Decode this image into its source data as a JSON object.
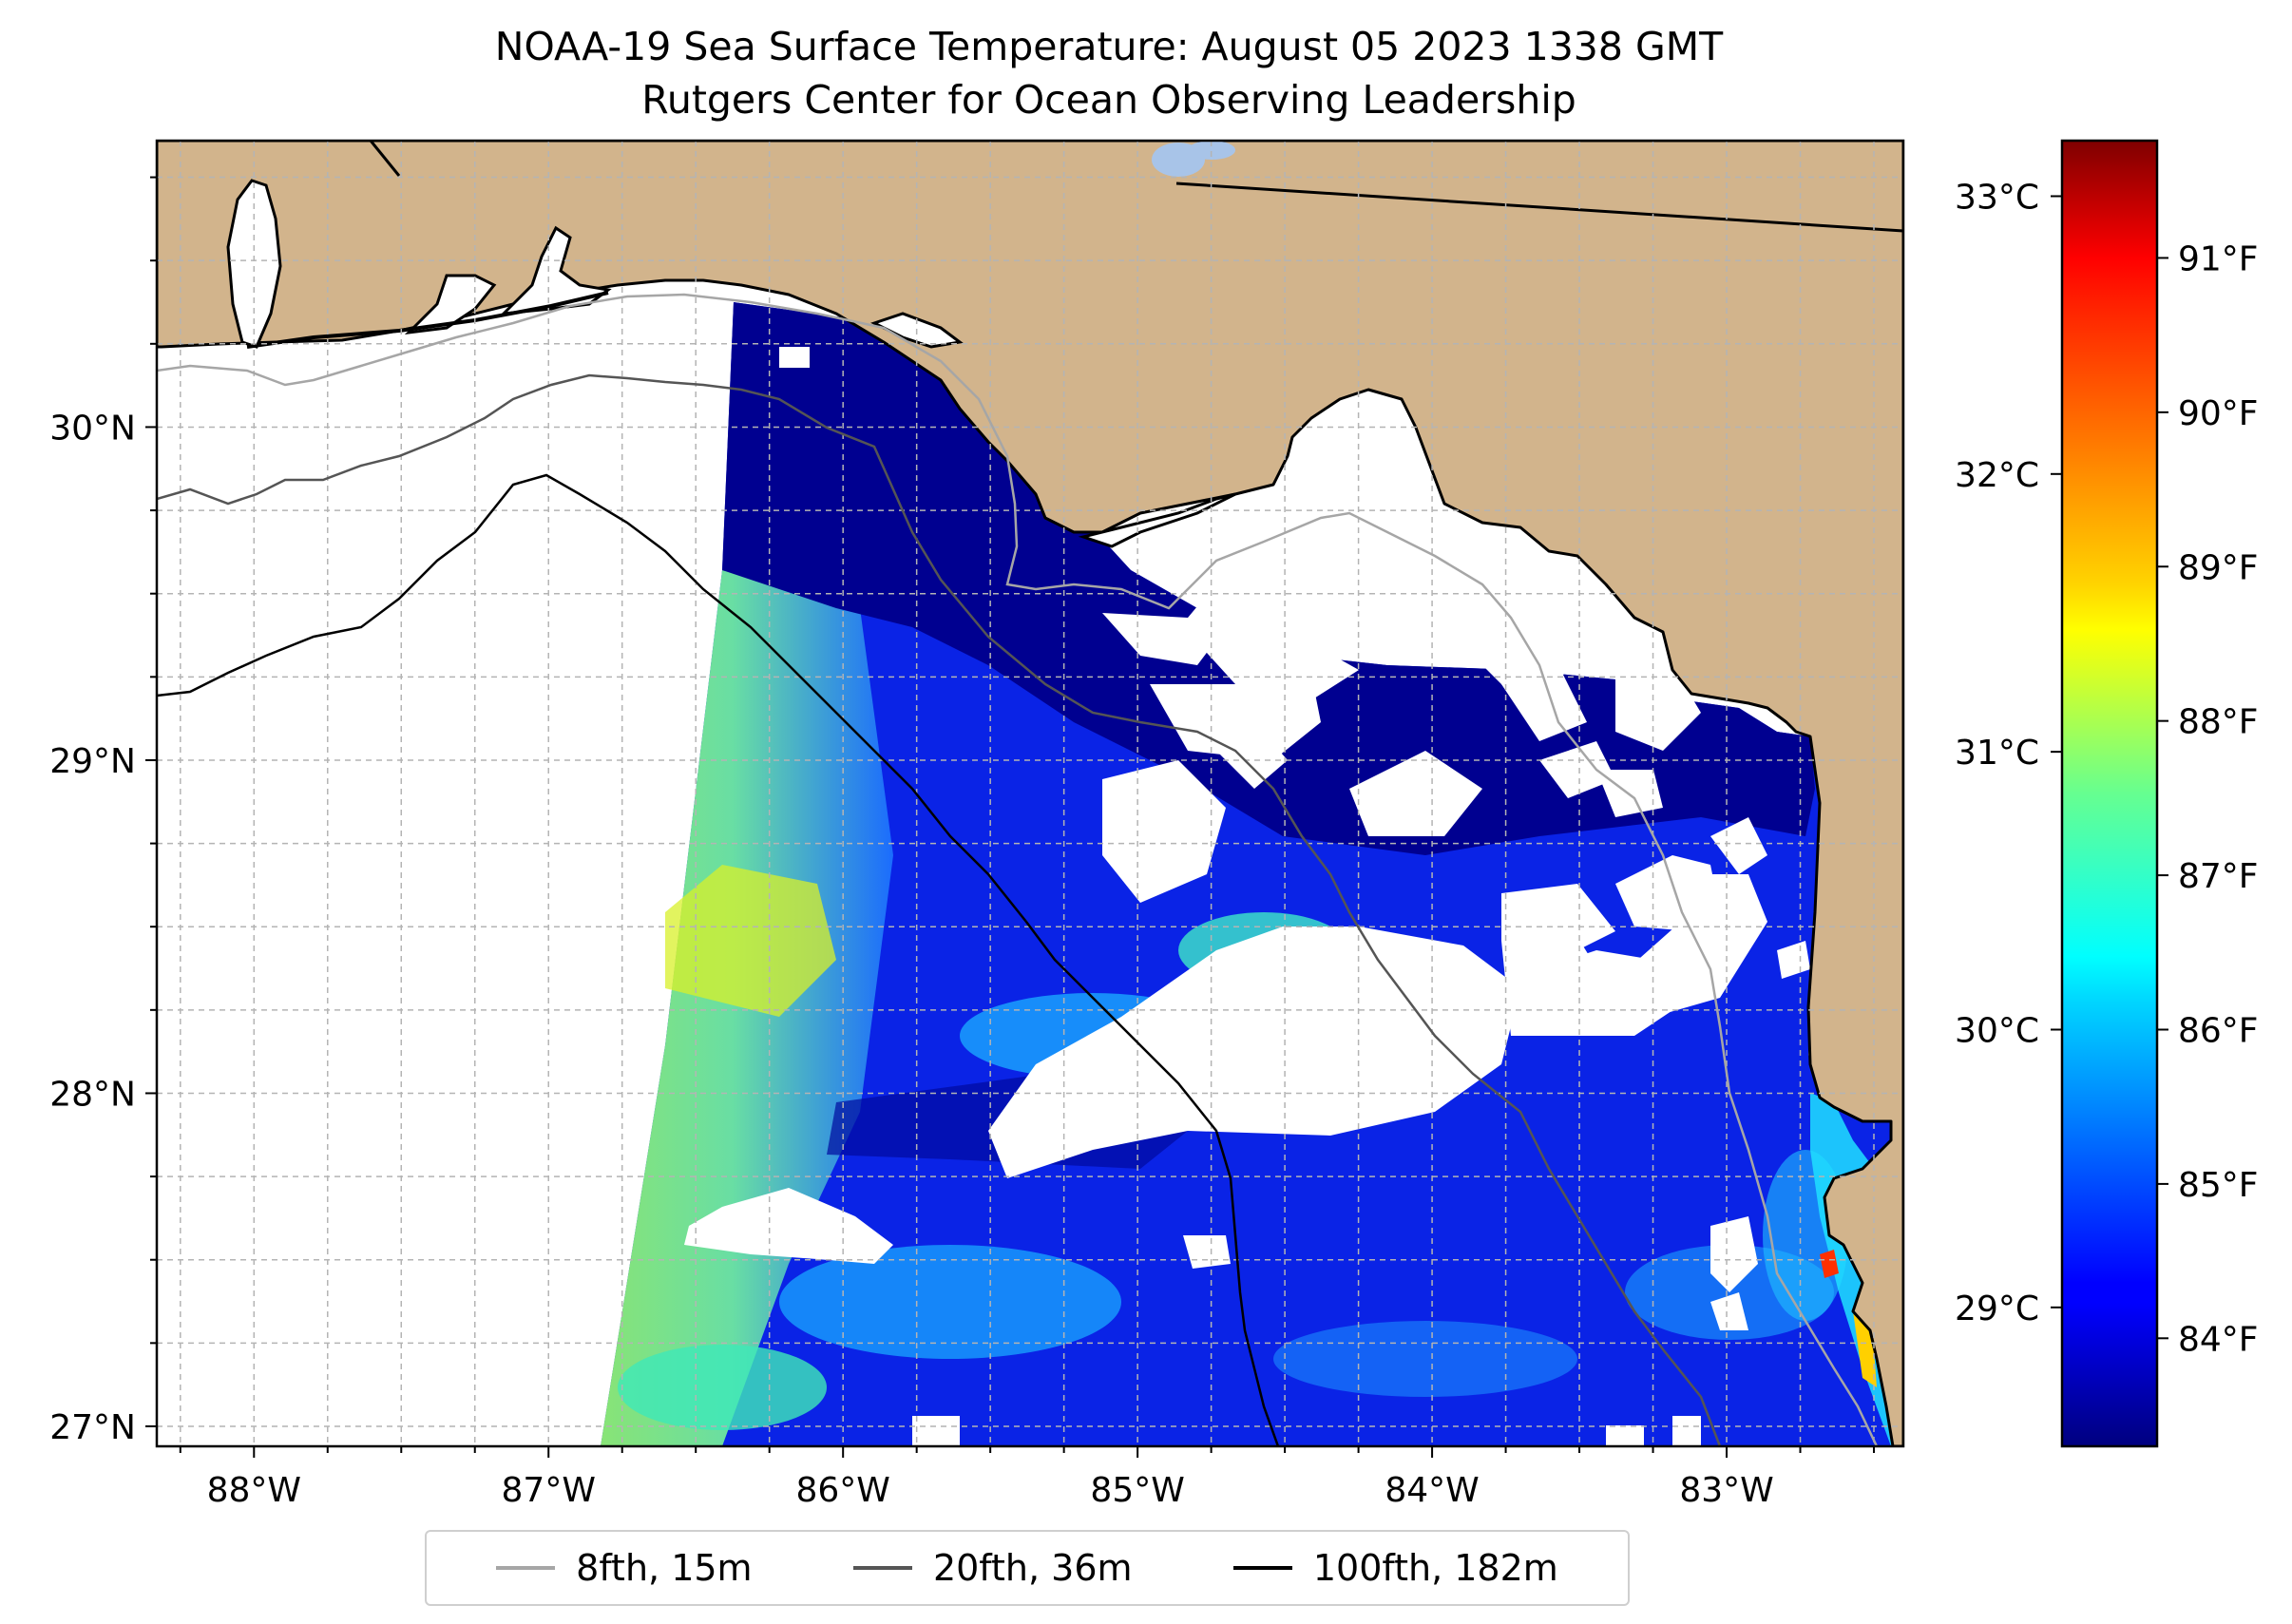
{
  "title": "NOAA-19 Sea Surface Temperature: August 05 2023 1338 GMT",
  "subtitle": "Rutgers Center for Ocean Observing Leadership",
  "map": {
    "extent": {
      "lon_min": -88.33,
      "lon_max": -82.4,
      "lat_min": 26.94,
      "lat_max": 30.86
    },
    "lon_ticks": [
      {
        "value": -88,
        "label": "88°W"
      },
      {
        "value": -87,
        "label": "87°W"
      },
      {
        "value": -86,
        "label": "86°W"
      },
      {
        "value": -85,
        "label": "85°W"
      },
      {
        "value": -84,
        "label": "84°W"
      },
      {
        "value": -83,
        "label": "83°W"
      }
    ],
    "lat_ticks": [
      {
        "value": 27,
        "label": "27°N"
      },
      {
        "value": 28,
        "label": "28°N"
      },
      {
        "value": 29,
        "label": "29°N"
      },
      {
        "value": 30,
        "label": "30°N"
      }
    ],
    "gridlines": true,
    "colors": {
      "land": "#d2b48c",
      "water_blue": "#000080",
      "coast": "#000000",
      "grid": "#b0b0b0"
    }
  },
  "colorbar": {
    "colormap": "jet",
    "celsius_range": [
      28.5,
      33.2
    ],
    "celsius_ticks": [
      {
        "value": 29,
        "label": "29°C"
      },
      {
        "value": 30,
        "label": "30°C"
      },
      {
        "value": 31,
        "label": "31°C"
      },
      {
        "value": 32,
        "label": "32°C"
      },
      {
        "value": 33,
        "label": "33°C"
      }
    ],
    "fahrenheit_ticks": [
      {
        "value": 84,
        "label": "84°F"
      },
      {
        "value": 85,
        "label": "85°F"
      },
      {
        "value": 86,
        "label": "86°F"
      },
      {
        "value": 87,
        "label": "87°F"
      },
      {
        "value": 88,
        "label": "88°F"
      },
      {
        "value": 89,
        "label": "89°F"
      },
      {
        "value": 90,
        "label": "90°F"
      },
      {
        "value": 91,
        "label": "91°F"
      }
    ]
  },
  "legend": {
    "items": [
      {
        "label": "8fth, 15m",
        "color": "#a6a6a6"
      },
      {
        "label": "20fth, 36m",
        "color": "#555555"
      },
      {
        "label": "100fth, 182m",
        "color": "#000000"
      }
    ]
  }
}
